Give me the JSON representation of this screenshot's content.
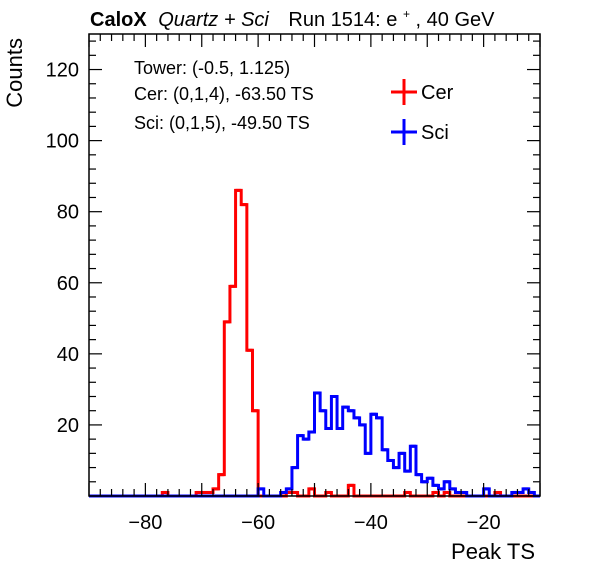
{
  "header": {
    "experiment": "CaloX",
    "detector": "Quartz + Sci",
    "run_prefix": "Run 1514: e",
    "run_sup": "+",
    "run_suffix": ", 40 GeV"
  },
  "info": {
    "tower": "Tower: (-0.5, 1.125)",
    "cer": "Cer: (0,1,4), -63.50 TS",
    "sci": "Sci: (0,1,5), -49.50 TS"
  },
  "colors": {
    "cer": "#ff0000",
    "sci": "#0000ff",
    "axis": "#000000"
  },
  "chart_data": {
    "type": "histogram",
    "xlabel": "Peak TS",
    "ylabel": "Counts",
    "xlim": [
      -90,
      -10
    ],
    "ylim": [
      0,
      130
    ],
    "x_ticks": [
      -80,
      -60,
      -40,
      -20
    ],
    "y_ticks": [
      20,
      40,
      60,
      80,
      100,
      120
    ],
    "bin_width": 1,
    "legend_position": "top-right",
    "series": [
      {
        "name": "Cer",
        "bins": [
          {
            "x": -77,
            "y": 1
          },
          {
            "x": -71,
            "y": 1
          },
          {
            "x": -70,
            "y": 1
          },
          {
            "x": -69,
            "y": 1
          },
          {
            "x": -68,
            "y": 2
          },
          {
            "x": -67,
            "y": 6
          },
          {
            "x": -66,
            "y": 49
          },
          {
            "x": -65,
            "y": 59
          },
          {
            "x": -64,
            "y": 86
          },
          {
            "x": -63,
            "y": 82
          },
          {
            "x": -62,
            "y": 41
          },
          {
            "x": -61,
            "y": 24
          },
          {
            "x": -55,
            "y": 1
          },
          {
            "x": -54,
            "y": 1
          },
          {
            "x": -51,
            "y": 2
          },
          {
            "x": -48,
            "y": 1
          },
          {
            "x": -44,
            "y": 3
          },
          {
            "x": -34,
            "y": 1
          },
          {
            "x": -29,
            "y": 1
          },
          {
            "x": -27,
            "y": 1
          },
          {
            "x": -18,
            "y": 1
          }
        ]
      },
      {
        "name": "Sci",
        "bins": [
          {
            "x": -60,
            "y": 2
          },
          {
            "x": -56,
            "y": 1
          },
          {
            "x": -55,
            "y": 2
          },
          {
            "x": -54,
            "y": 8
          },
          {
            "x": -53,
            "y": 17
          },
          {
            "x": -52,
            "y": 16
          },
          {
            "x": -51,
            "y": 18
          },
          {
            "x": -50,
            "y": 29
          },
          {
            "x": -49,
            "y": 24
          },
          {
            "x": -48,
            "y": 19
          },
          {
            "x": -47,
            "y": 28
          },
          {
            "x": -46,
            "y": 19
          },
          {
            "x": -45,
            "y": 25
          },
          {
            "x": -44,
            "y": 24
          },
          {
            "x": -43,
            "y": 22
          },
          {
            "x": -42,
            "y": 20
          },
          {
            "x": -41,
            "y": 12
          },
          {
            "x": -40,
            "y": 23
          },
          {
            "x": -39,
            "y": 22
          },
          {
            "x": -38,
            "y": 13
          },
          {
            "x": -37,
            "y": 10
          },
          {
            "x": -36,
            "y": 8
          },
          {
            "x": -35,
            "y": 12
          },
          {
            "x": -34,
            "y": 7
          },
          {
            "x": -33,
            "y": 14
          },
          {
            "x": -32,
            "y": 6
          },
          {
            "x": -31,
            "y": 4
          },
          {
            "x": -30,
            "y": 5
          },
          {
            "x": -29,
            "y": 3
          },
          {
            "x": -28,
            "y": 2
          },
          {
            "x": -27,
            "y": 4
          },
          {
            "x": -26,
            "y": 2
          },
          {
            "x": -25,
            "y": 1
          },
          {
            "x": -24,
            "y": 1
          },
          {
            "x": -20,
            "y": 2
          },
          {
            "x": -15,
            "y": 1
          },
          {
            "x": -14,
            "y": 1
          },
          {
            "x": -13,
            "y": 2
          },
          {
            "x": -12,
            "y": 1
          }
        ]
      }
    ]
  }
}
